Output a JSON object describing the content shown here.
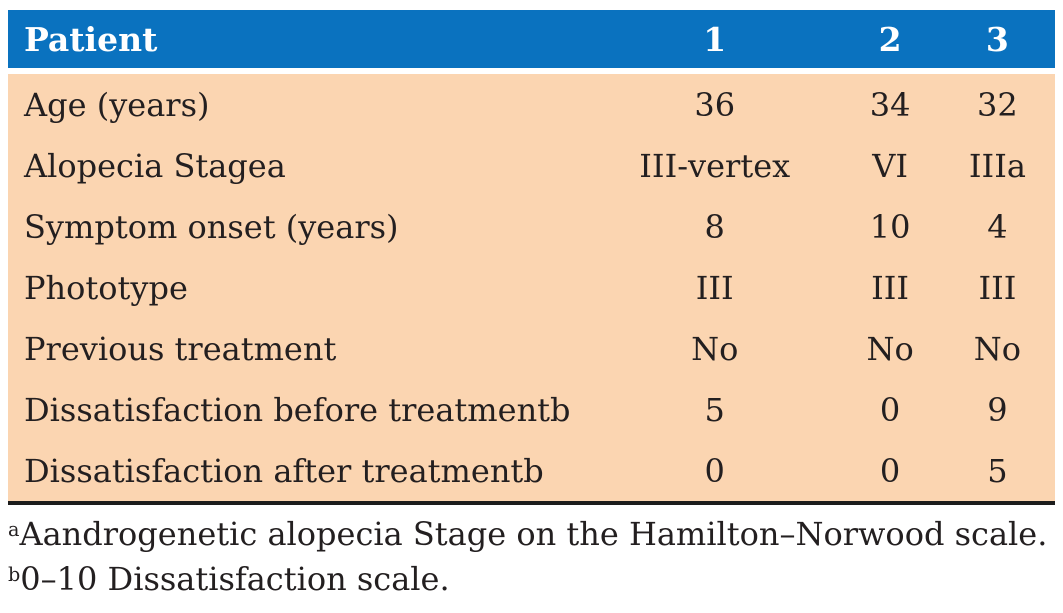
{
  "table": {
    "header": {
      "col0": "Patient",
      "col1": "1",
      "col2": "2",
      "col3": "3"
    },
    "rows": [
      {
        "label": "Age (years)",
        "values": [
          "36",
          "34",
          "32"
        ]
      },
      {
        "label": "Alopecia Stagea",
        "values": [
          "III-vertex",
          "VI",
          "IIIa"
        ]
      },
      {
        "label": "Symptom onset (years)",
        "values": [
          "8",
          "10",
          "4"
        ]
      },
      {
        "label": "Phototype",
        "values": [
          "III",
          "III",
          "III"
        ]
      },
      {
        "label": "Previous treatment",
        "values": [
          "No",
          "No",
          "No"
        ]
      },
      {
        "label": "Dissatisfaction before treatmentb",
        "values": [
          "5",
          "0",
          "9"
        ]
      },
      {
        "label": "Dissatisfaction after treatmentb",
        "values": [
          "0",
          "0",
          "5"
        ]
      }
    ]
  },
  "footnotes": [
    {
      "marker": "a",
      "text": "Aandrogenetic alopecia Stage on the Hamilton–Norwood scale."
    },
    {
      "marker": "b",
      "text": "0–10 Dissatisfaction scale."
    }
  ],
  "colors": {
    "header_bg": "#0A72BF",
    "header_text": "#FFFFFF",
    "body_bg": "#FBD5B1",
    "body_text": "#231F20",
    "bottom_rule": "#1C1C1C"
  }
}
